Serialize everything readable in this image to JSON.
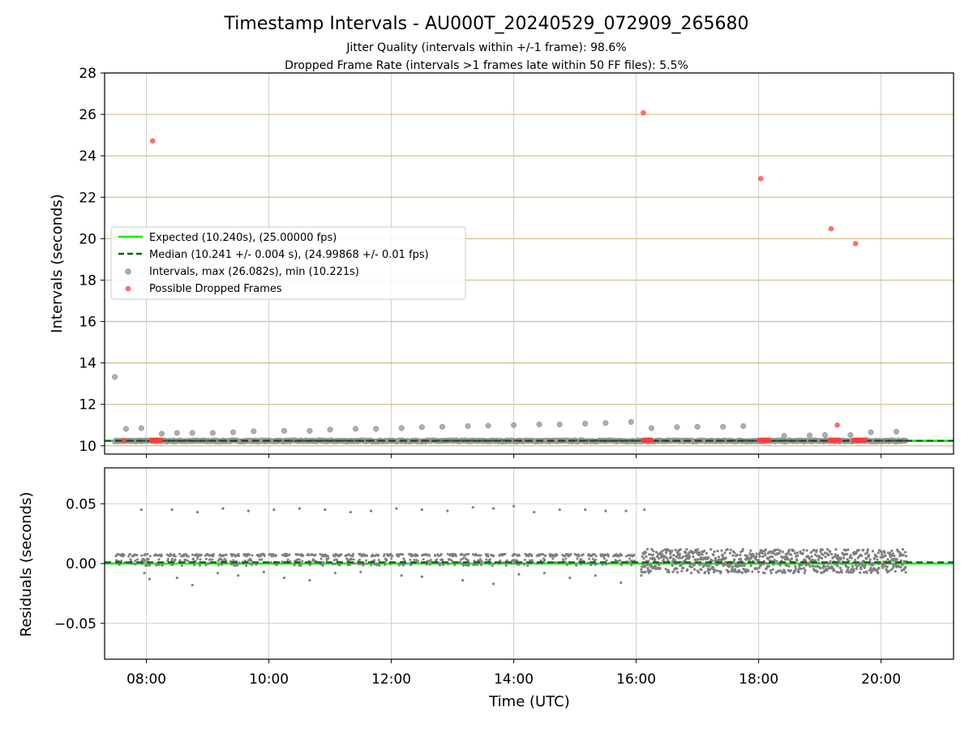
{
  "figure": {
    "title": "Timestamp Intervals - AU000T_20240529_072909_265680",
    "subtitle_1": "Jitter Quality (intervals within +/-1 frame): 98.6%",
    "subtitle_2": "Dropped Frame Rate (intervals >1 frames late within 50 FF files): 5.5%"
  },
  "colors": {
    "expected": "#00ee00",
    "median": "#006400",
    "intervals": "#a0a0a0",
    "dropped": "#ff3b3b",
    "residuals": "#808080",
    "tan_grid": "#d2bf85",
    "grid": "#cfcfcf"
  },
  "chart_data": [
    {
      "type": "scatter",
      "name": "intervals-panel",
      "xlabel": "",
      "ylabel": "Intervals (seconds)",
      "xlim": [
        "07:19",
        "21:11"
      ],
      "ylim": [
        9.6,
        28
      ],
      "x_ticks": [
        "08:00",
        "10:00",
        "12:00",
        "14:00",
        "16:00",
        "18:00",
        "20:00"
      ],
      "y_ticks": [
        10,
        12,
        14,
        16,
        18,
        20,
        22,
        24,
        26,
        28
      ],
      "grid": true,
      "legend_position": "center-left",
      "legend": [
        {
          "label": "Expected (10.240s), (25.00000 fps)",
          "marker": "solid-line"
        },
        {
          "label": "Median (10.241 +/- 0.004 s), (24.99868 +/- 0.01 fps)",
          "marker": "dashed-line"
        },
        {
          "label": "Intervals, max (26.082s), min (10.221s)",
          "marker": "gray-dot"
        },
        {
          "label": "Possible Dropped Frames",
          "marker": "red-dot"
        }
      ],
      "expected_interval": 10.24,
      "median_interval": 10.241,
      "series": [
        {
          "name": "Intervals",
          "points": [
            {
              "x": "07:29",
              "y": 13.32
            },
            {
              "x": "07:40",
              "y": 10.82
            },
            {
              "x": "07:55",
              "y": 10.85
            },
            {
              "x": "08:15",
              "y": 10.58
            },
            {
              "x": "08:30",
              "y": 10.62
            },
            {
              "x": "08:45",
              "y": 10.62
            },
            {
              "x": "09:05",
              "y": 10.62
            },
            {
              "x": "09:25",
              "y": 10.65
            },
            {
              "x": "09:45",
              "y": 10.7
            },
            {
              "x": "10:15",
              "y": 10.72
            },
            {
              "x": "10:40",
              "y": 10.72
            },
            {
              "x": "11:00",
              "y": 10.78
            },
            {
              "x": "11:25",
              "y": 10.82
            },
            {
              "x": "11:45",
              "y": 10.82
            },
            {
              "x": "12:10",
              "y": 10.85
            },
            {
              "x": "12:30",
              "y": 10.9
            },
            {
              "x": "12:50",
              "y": 10.92
            },
            {
              "x": "13:15",
              "y": 10.95
            },
            {
              "x": "13:35",
              "y": 10.97
            },
            {
              "x": "14:00",
              "y": 11.0
            },
            {
              "x": "14:25",
              "y": 11.03
            },
            {
              "x": "14:45",
              "y": 11.03
            },
            {
              "x": "15:10",
              "y": 11.07
            },
            {
              "x": "15:30",
              "y": 11.1
            },
            {
              "x": "15:55",
              "y": 11.15
            },
            {
              "x": "16:15",
              "y": 10.85
            },
            {
              "x": "16:40",
              "y": 10.9
            },
            {
              "x": "17:00",
              "y": 10.92
            },
            {
              "x": "17:25",
              "y": 10.92
            },
            {
              "x": "17:45",
              "y": 10.95
            },
            {
              "x": "18:25",
              "y": 10.48
            },
            {
              "x": "18:50",
              "y": 10.5
            },
            {
              "x": "19:05",
              "y": 10.52
            },
            {
              "x": "19:30",
              "y": 10.52
            },
            {
              "x": "19:50",
              "y": 10.65
            },
            {
              "x": "20:15",
              "y": 10.68
            }
          ]
        },
        {
          "name": "Possible Dropped Frames",
          "points": [
            {
              "x": "07:38",
              "y": 10.25
            },
            {
              "x": "08:06",
              "y": 24.72
            },
            {
              "x": "16:07",
              "y": 26.08
            },
            {
              "x": "18:02",
              "y": 22.9
            },
            {
              "x": "19:11",
              "y": 20.48
            },
            {
              "x": "19:17",
              "y": 11.0
            },
            {
              "x": "19:35",
              "y": 19.76
            }
          ],
          "clusters": [
            {
              "x_from": "08:05",
              "x_to": "08:15",
              "y": 10.27
            },
            {
              "x_from": "16:07",
              "x_to": "16:15",
              "y": 10.27
            },
            {
              "x_from": "18:01",
              "x_to": "18:11",
              "y": 10.27
            },
            {
              "x_from": "19:10",
              "x_to": "19:20",
              "y": 10.27
            },
            {
              "x_from": "19:33",
              "x_to": "19:45",
              "y": 10.27
            }
          ]
        }
      ]
    },
    {
      "type": "scatter",
      "name": "residuals-panel",
      "xlabel": "Time (UTC)",
      "ylabel": "Residuals (seconds)",
      "xlim": [
        "07:19",
        "21:11"
      ],
      "ylim": [
        -0.08,
        0.08
      ],
      "x_ticks": [
        "08:00",
        "10:00",
        "12:00",
        "14:00",
        "16:00",
        "18:00",
        "20:00"
      ],
      "y_ticks": [
        0.05,
        0.0,
        -0.05
      ],
      "y_tick_labels": [
        "0.05",
        "0.00",
        "−0.05"
      ],
      "grid": true,
      "series": [
        {
          "name": "Residuals",
          "spikes_high": [
            {
              "x": "07:55",
              "y": 0.045
            },
            {
              "x": "08:25",
              "y": 0.045
            },
            {
              "x": "08:50",
              "y": 0.043
            },
            {
              "x": "09:15",
              "y": 0.046
            },
            {
              "x": "09:40",
              "y": 0.044
            },
            {
              "x": "10:05",
              "y": 0.045
            },
            {
              "x": "10:30",
              "y": 0.046
            },
            {
              "x": "10:55",
              "y": 0.045
            },
            {
              "x": "11:20",
              "y": 0.043
            },
            {
              "x": "11:40",
              "y": 0.044
            },
            {
              "x": "12:05",
              "y": 0.046
            },
            {
              "x": "12:30",
              "y": 0.045
            },
            {
              "x": "12:55",
              "y": 0.044
            },
            {
              "x": "13:20",
              "y": 0.047
            },
            {
              "x": "13:40",
              "y": 0.046
            },
            {
              "x": "14:00",
              "y": 0.048
            },
            {
              "x": "14:20",
              "y": 0.043
            },
            {
              "x": "14:45",
              "y": 0.045
            },
            {
              "x": "15:10",
              "y": 0.045
            },
            {
              "x": "15:30",
              "y": 0.044
            },
            {
              "x": "15:50",
              "y": 0.044
            },
            {
              "x": "16:08",
              "y": 0.045
            }
          ],
          "spikes_low": [
            {
              "x": "07:58",
              "y": -0.008
            },
            {
              "x": "08:03",
              "y": -0.013
            },
            {
              "x": "08:30",
              "y": -0.012
            },
            {
              "x": "08:45",
              "y": -0.018
            },
            {
              "x": "09:10",
              "y": -0.008
            },
            {
              "x": "09:30",
              "y": -0.01
            },
            {
              "x": "09:55",
              "y": -0.007
            },
            {
              "x": "10:15",
              "y": -0.012
            },
            {
              "x": "10:40",
              "y": -0.014
            },
            {
              "x": "11:05",
              "y": -0.008
            },
            {
              "x": "11:30",
              "y": -0.007
            },
            {
              "x": "12:10",
              "y": -0.01
            },
            {
              "x": "12:30",
              "y": -0.011
            },
            {
              "x": "13:10",
              "y": -0.014
            },
            {
              "x": "13:40",
              "y": -0.017
            },
            {
              "x": "14:05",
              "y": -0.009
            },
            {
              "x": "14:30",
              "y": -0.008
            },
            {
              "x": "14:55",
              "y": -0.012
            },
            {
              "x": "15:20",
              "y": -0.01
            },
            {
              "x": "15:45",
              "y": -0.016
            },
            {
              "x": "16:05",
              "y": -0.01
            }
          ],
          "band_before_1600": {
            "x_from": "07:30",
            "x_to": "16:00",
            "y_range": [
              -0.002,
              0.009
            ]
          },
          "band_after_1600": {
            "x_from": "16:05",
            "x_to": "20:25",
            "y_range": [
              -0.008,
              0.012
            ]
          }
        },
        {
          "name": "Expected",
          "y": 0.0
        },
        {
          "name": "Median",
          "y": 0.001
        }
      ]
    }
  ]
}
